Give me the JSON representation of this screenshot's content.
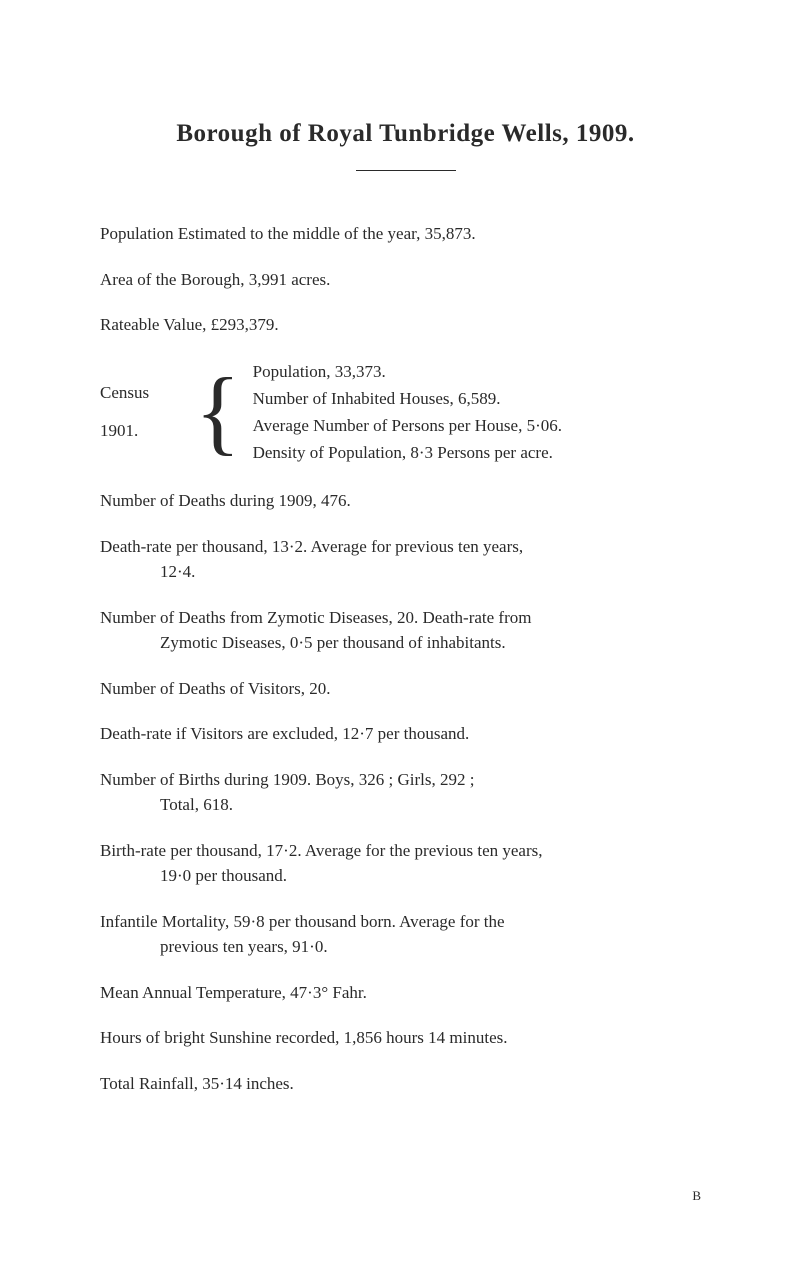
{
  "title": "Borough of Royal Tunbridge Wells, 1909.",
  "p_population": "Population Estimated to the middle of the year, 35,873.",
  "p_area": "Area of the Borough, 3,991 acres.",
  "p_rateable": "Rateable Value, £293,379.",
  "census": {
    "label_top": "Census",
    "label_bottom": "1901.",
    "lines": [
      "Population, 33,373.",
      "Number of Inhabited Houses, 6,589.",
      "Average Number of Persons per House, 5·06.",
      "Density of Population, 8·3 Persons per acre."
    ]
  },
  "p_deaths_1909": "Number of Deaths during 1909, 476.",
  "p_deathrate": "Death-rate per thousand, 13·2.  Average for previous ten years,",
  "p_deathrate_cont": "12·4.",
  "p_zymotic": "Number of Deaths from Zymotic Diseases, 20.  Death-rate from",
  "p_zymotic_cont": "Zymotic Diseases, 0·5 per thousand of inhabitants.",
  "p_visitor_deaths": "Number of Deaths of Visitors, 20.",
  "p_visitor_rate": "Death-rate if Visitors are excluded, 12·7 per thousand.",
  "p_births": "Number of Births during 1909.  Boys, 326 ;  Girls, 292 ;",
  "p_births_cont": "Total, 618.",
  "p_birthrate": "Birth-rate per thousand, 17·2.  Average for the previous ten years,",
  "p_birthrate_cont": "19·0 per thousand.",
  "p_infantile": "Infantile Mortality, 59·8 per thousand born.  Average for the",
  "p_infantile_cont": "previous ten years, 91·0.",
  "p_temp": "Mean Annual Temperature, 47·3° Fahr.",
  "p_sunshine": "Hours of bright Sunshine recorded, 1,856 hours 14 minutes.",
  "p_rainfall": "Total Rainfall, 35·14 inches.",
  "footer_mark": "B",
  "colors": {
    "text": "#2a2a2a",
    "background": "#ffffff"
  },
  "typography": {
    "body_fontsize": 17,
    "title_fontsize": 25,
    "font_family": "Georgia, Times New Roman, serif"
  }
}
